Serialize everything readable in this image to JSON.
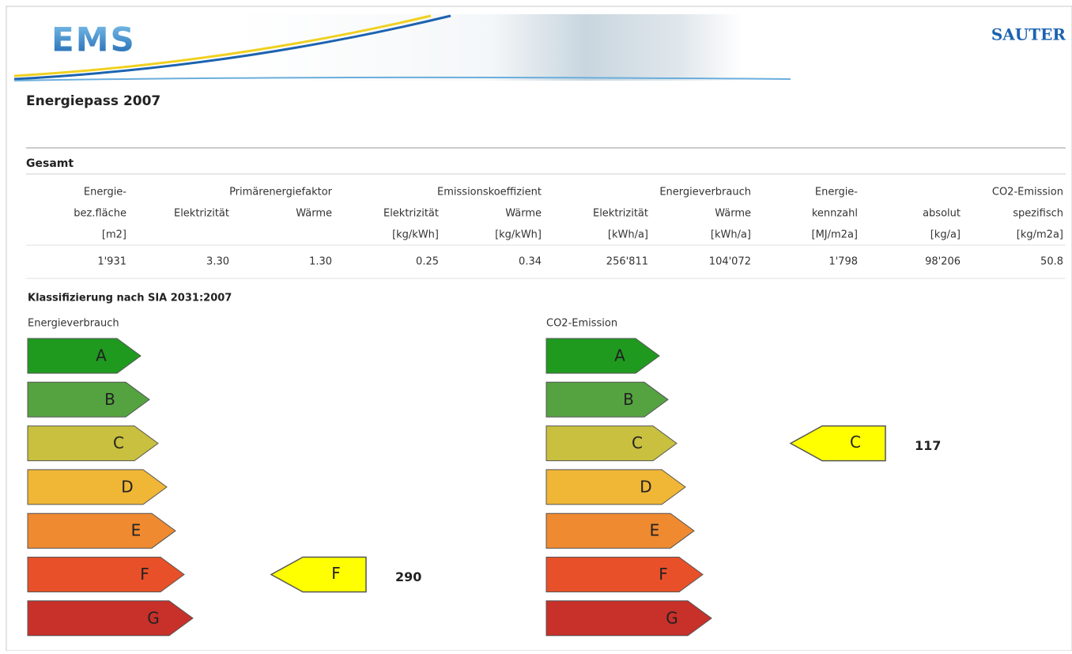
{
  "header": {
    "logo": "EMS",
    "brand": "SAUTER"
  },
  "title": "Energiepass 2007",
  "section": "Gesamt",
  "table": {
    "header_rows": [
      [
        "Energie-",
        null,
        "Primärenergiefaktor",
        null,
        "Emissionskoeffizient",
        null,
        "Energieverbrauch",
        "Energie-",
        null,
        "CO2-Emission"
      ],
      [
        "bez.fläche",
        "Elektrizität",
        "Wärme",
        "Elektrizität",
        "Wärme",
        "Elektrizität",
        "Wärme",
        "kennzahl",
        "absolut",
        "spezifisch"
      ],
      [
        "[m2]",
        null,
        null,
        "[kg/kWh]",
        "[kg/kWh]",
        "[kWh/a]",
        "[kWh/a]",
        "[MJ/m2a]",
        "[kg/a]",
        "[kg/m2a]"
      ]
    ],
    "values": [
      "1'931",
      "3.30",
      "1.30",
      "0.25",
      "0.34",
      "256'811",
      "104'072",
      "1'798",
      "98'206",
      "50.8"
    ]
  },
  "classification": {
    "title": "Klassifizierung nach SIA 2031:2007",
    "classes": [
      "A",
      "B",
      "C",
      "D",
      "E",
      "F",
      "G"
    ],
    "panels": [
      {
        "label": "Energieverbrauch",
        "indicator": "F",
        "value": "290"
      },
      {
        "label": "CO2-Emission",
        "indicator": "C",
        "value": "117"
      }
    ]
  }
}
